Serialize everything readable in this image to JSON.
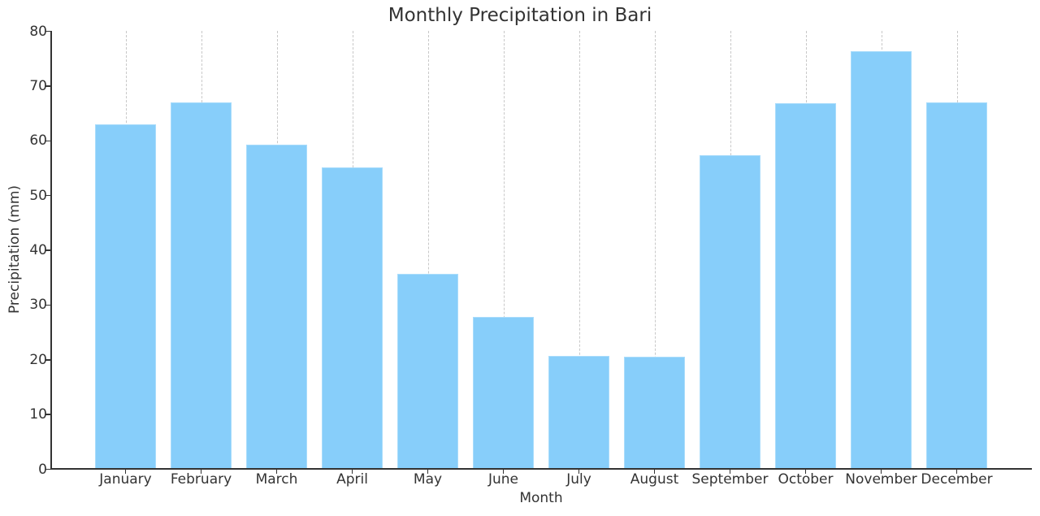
{
  "chart_data": {
    "type": "bar",
    "title": "Monthly Precipitation in Bari",
    "xlabel": "Month",
    "ylabel": "Precipitation (mm)",
    "categories": [
      "January",
      "February",
      "March",
      "April",
      "May",
      "June",
      "July",
      "August",
      "September",
      "October",
      "November",
      "December"
    ],
    "values": [
      63.0,
      67.0,
      59.3,
      55.2,
      35.7,
      27.8,
      20.7,
      20.5,
      57.4,
      66.8,
      76.3,
      67.0
    ],
    "ylim": [
      0,
      80
    ],
    "yticks": [
      0,
      10,
      20,
      30,
      40,
      50,
      60,
      70,
      80
    ],
    "grid": {
      "x": true,
      "y": false,
      "style": "dashed"
    },
    "legend": null,
    "colors": {
      "bar": "#87CEFA",
      "axis": "#333333",
      "grid": "#c8c8c8"
    }
  }
}
